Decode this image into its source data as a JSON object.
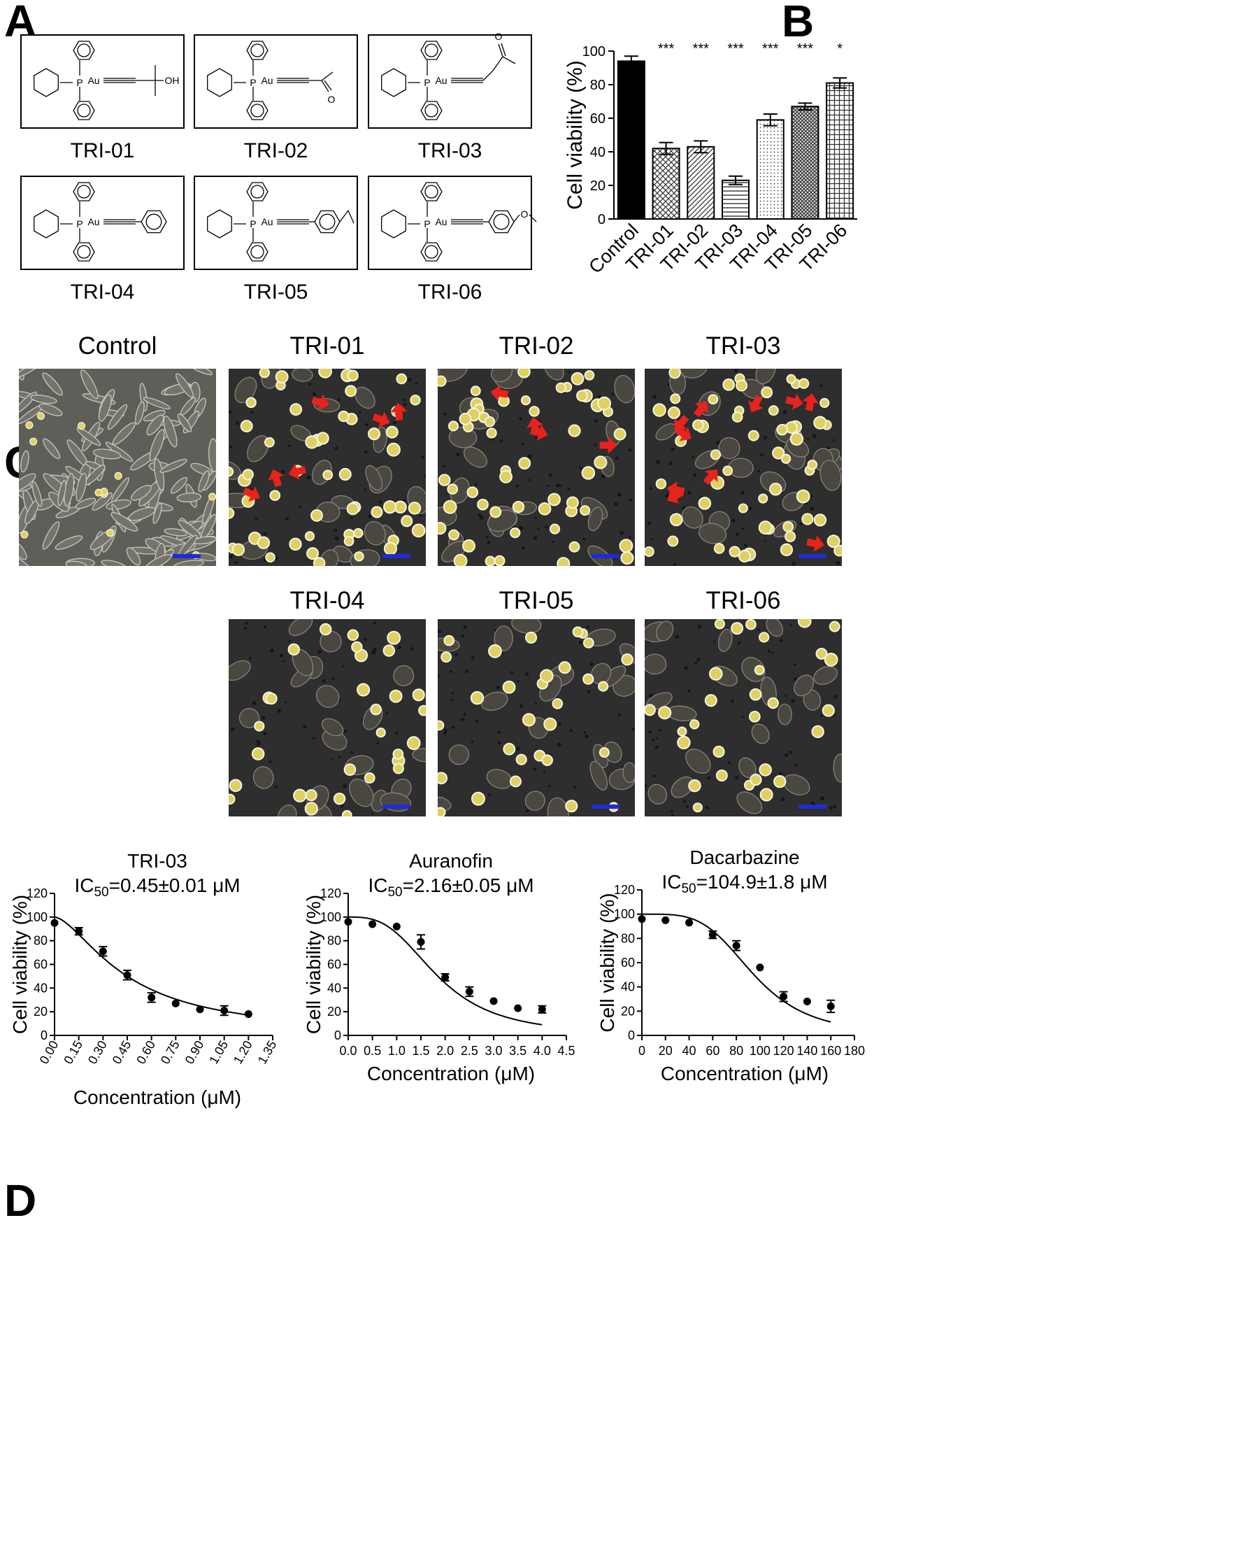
{
  "panel_letters": [
    "A",
    "B",
    "C",
    "D"
  ],
  "molecules": [
    {
      "name": "TRI-01",
      "tail": "alkyne-CMe2-OH",
      "tail_text": "OH"
    },
    {
      "name": "TRI-02",
      "tail": "alkyne-acetyl",
      "tail_text": "O"
    },
    {
      "name": "TRI-03",
      "tail": "alkyne-CH2-acetyl",
      "tail_text": "O"
    },
    {
      "name": "TRI-04",
      "tail": "alkyne-phenyl",
      "tail_text": ""
    },
    {
      "name": "TRI-05",
      "tail": "alkyne-4-ethylphenyl",
      "tail_text": ""
    },
    {
      "name": "TRI-06",
      "tail": "alkyne-4-methoxyphenyl",
      "tail_text": "O"
    }
  ],
  "atom_labels": {
    "P": "P",
    "Au": "Au"
  },
  "micrographs": {
    "row1": [
      {
        "title": "Control",
        "arrows": 0,
        "style": "confluent"
      },
      {
        "title": "TRI-01",
        "arrows": 6,
        "style": "rounded"
      },
      {
        "title": "TRI-02",
        "arrows": 4,
        "style": "rounded"
      },
      {
        "title": "TRI-03",
        "arrows": 10,
        "style": "rounded"
      }
    ],
    "row2": [
      {
        "title": "TRI-04",
        "arrows": 0,
        "style": "mixed"
      },
      {
        "title": "TRI-05",
        "arrows": 0,
        "style": "mixed"
      },
      {
        "title": "TRI-06",
        "arrows": 0,
        "style": "mixed"
      }
    ],
    "colors": {
      "background": "#2e2e2e",
      "cell": "#e0d060",
      "arrow": "#e8231c",
      "scale_bar": "#1f2bd6"
    }
  },
  "chart_data": [
    {
      "panel": "B",
      "type": "bar",
      "categories": [
        "Control",
        "TRI-01",
        "TRI-02",
        "TRI-03",
        "TRI-04",
        "TRI-05",
        "TRI-06"
      ],
      "values": [
        94,
        42,
        43,
        23,
        59,
        67,
        81
      ],
      "errors": [
        3,
        3.5,
        3.5,
        2.5,
        3.5,
        2,
        3
      ],
      "significance": [
        "",
        "***",
        "***",
        "***",
        "***",
        "***",
        "*"
      ],
      "xlabel": "",
      "ylabel": "Cell viability (%)",
      "ylim": [
        0,
        100
      ],
      "yticks": [
        0,
        20,
        40,
        60,
        80,
        100
      ],
      "patterns": [
        "solid",
        "crosshatch",
        "diagonal",
        "horizontal",
        "dots",
        "fine-crosshatch",
        "grid"
      ],
      "grid": false
    },
    {
      "panel": "D",
      "type": "scatter",
      "title": "TRI-03",
      "subtitle_prefix": "IC",
      "subtitle_sub": "50",
      "subtitle_rest": "=0.45±0.01 μM",
      "xlabel": "Concentration (μM)",
      "ylabel": "Cell viability (%)",
      "x": [
        0,
        0.15,
        0.3,
        0.45,
        0.6,
        0.75,
        0.9,
        1.05,
        1.2
      ],
      "y": [
        95,
        88,
        71,
        51,
        32,
        27,
        22,
        21,
        18
      ],
      "errors": [
        0,
        3,
        4,
        4,
        4,
        0,
        0,
        4,
        0
      ],
      "fit_ic50": 0.45,
      "fit_hill": 1.6,
      "xlim": [
        0,
        1.35
      ],
      "ylim": [
        0,
        120
      ],
      "xticks": [
        "0.00",
        "0.15",
        "0.30",
        "0.45",
        "0.60",
        "0.75",
        "0.90",
        "1.05",
        "1.20",
        "1.35"
      ],
      "yticks": [
        0,
        20,
        40,
        60,
        80,
        100,
        120
      ],
      "xtick_rotation": true
    },
    {
      "panel": "D",
      "type": "scatter",
      "title": "Auranofin",
      "subtitle_prefix": "IC",
      "subtitle_sub": "50",
      "subtitle_rest": "=2.16±0.05 μM",
      "xlabel": "Concentration (μM)",
      "ylabel": "Cell viability (%)",
      "x": [
        0,
        0.5,
        1.0,
        1.5,
        2.0,
        2.5,
        3.0,
        3.5,
        4.0
      ],
      "y": [
        96,
        94,
        92,
        79,
        49,
        37,
        29,
        23,
        22
      ],
      "errors": [
        0,
        0,
        0,
        6,
        3,
        4,
        0,
        0,
        3
      ],
      "fit_ic50": 1.85,
      "fit_hill": 3,
      "xlim": [
        0,
        4.5
      ],
      "ylim": [
        0,
        120
      ],
      "xticks": [
        "0.0",
        "0.5",
        "1.0",
        "1.5",
        "2.0",
        "2.5",
        "3.0",
        "3.5",
        "4.0",
        "4.5"
      ],
      "yticks": [
        0,
        20,
        40,
        60,
        80,
        100,
        120
      ],
      "xtick_rotation": false
    },
    {
      "panel": "D",
      "type": "scatter",
      "title": "Dacarbazine",
      "subtitle_prefix": "IC",
      "subtitle_sub": "50",
      "subtitle_rest": "=104.9±1.8 μM",
      "xlabel": "Concentration (μM)",
      "ylabel": "Cell viability (%)",
      "x": [
        0,
        20,
        40,
        60,
        80,
        100,
        120,
        140,
        160
      ],
      "y": [
        96,
        95,
        93,
        83,
        74,
        56,
        32,
        28,
        24
      ],
      "errors": [
        0,
        0,
        0,
        3,
        4,
        0,
        4,
        0,
        5
      ],
      "fit_ic50": 95,
      "fit_hill": 4,
      "xlim": [
        0,
        180
      ],
      "ylim": [
        0,
        120
      ],
      "xticks": [
        "0",
        "20",
        "40",
        "60",
        "80",
        "100",
        "120",
        "140",
        "160",
        "180"
      ],
      "yticks": [
        0,
        20,
        40,
        60,
        80,
        100,
        120
      ],
      "xtick_rotation": false
    }
  ]
}
